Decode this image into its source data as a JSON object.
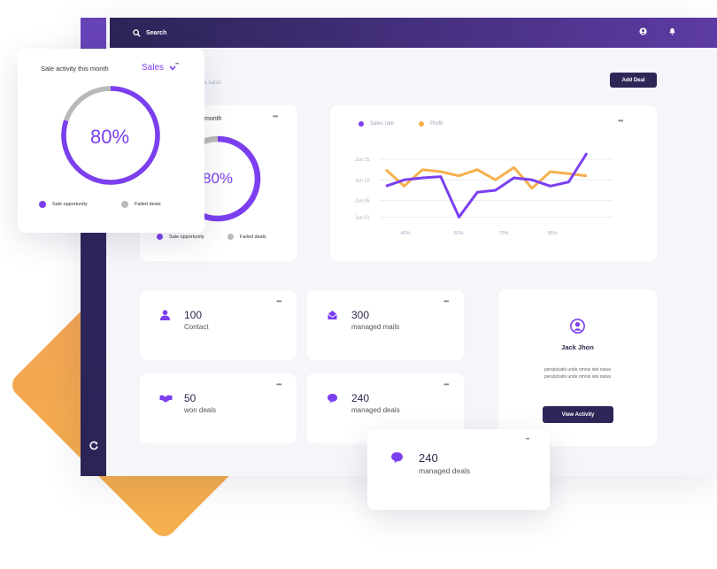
{
  "header": {
    "search_label": "Search",
    "add_deal_label": "Add Deal",
    "subtitle": "perspiciatis unde omnis iste natus"
  },
  "colors": {
    "purple": "#7b3ff0",
    "navy": "#2d2657",
    "orange": "#f5b04d",
    "gray": "#b9b9b9"
  },
  "donut_back": {
    "title_fragment": "month",
    "percent_label": "80%",
    "percent": 80,
    "legend": [
      "Sale opportunity",
      "Failed deals"
    ]
  },
  "donut_front": {
    "title": "Sale activity this month",
    "dropdown_label": "Sales",
    "percent_label": "80%",
    "percent": 80,
    "legend": [
      "Sale opportunity",
      "Failed deals"
    ]
  },
  "chart_data": {
    "type": "line",
    "legend": [
      "Sales rate",
      "Profit"
    ],
    "y_ticks": [
      "Jun 15",
      "Jun 10",
      "Jun 05",
      "Jun 01"
    ],
    "x_ticks": [
      "40%",
      "50%",
      "70%",
      "95%"
    ],
    "series": [
      {
        "name": "Sales rate",
        "color": "#7b3ff0",
        "values": [
          8.5,
          10.0,
          10.5,
          10.8,
          1.0,
          7.0,
          7.5,
          10.5,
          10.0,
          8.5,
          9.5,
          16.5
        ]
      },
      {
        "name": "Profit",
        "color": "#f5b04d",
        "values": [
          12.5,
          8.5,
          12.5,
          12.0,
          11.0,
          12.5,
          10.0,
          13.0,
          8.0,
          12.0,
          11.5,
          11.0
        ]
      }
    ]
  },
  "stats": [
    {
      "value": "100",
      "label": "Contact",
      "icon": "user-icon"
    },
    {
      "value": "300",
      "label": "managed mails",
      "icon": "mail-icon"
    },
    {
      "value": "50",
      "label": "won deals",
      "icon": "handshake-icon"
    },
    {
      "value": "240",
      "label": "managed deals",
      "icon": "chat-icon"
    }
  ],
  "profile": {
    "name": "Jack Jhon",
    "text_line1": "perspiciatis unde omnis iste natus",
    "text_line2": "perspiciatis unde omnis iste natus",
    "button_label": "View Activity"
  },
  "float_stat": {
    "value": "240",
    "label": "managed deals",
    "icon": "chat-icon"
  }
}
